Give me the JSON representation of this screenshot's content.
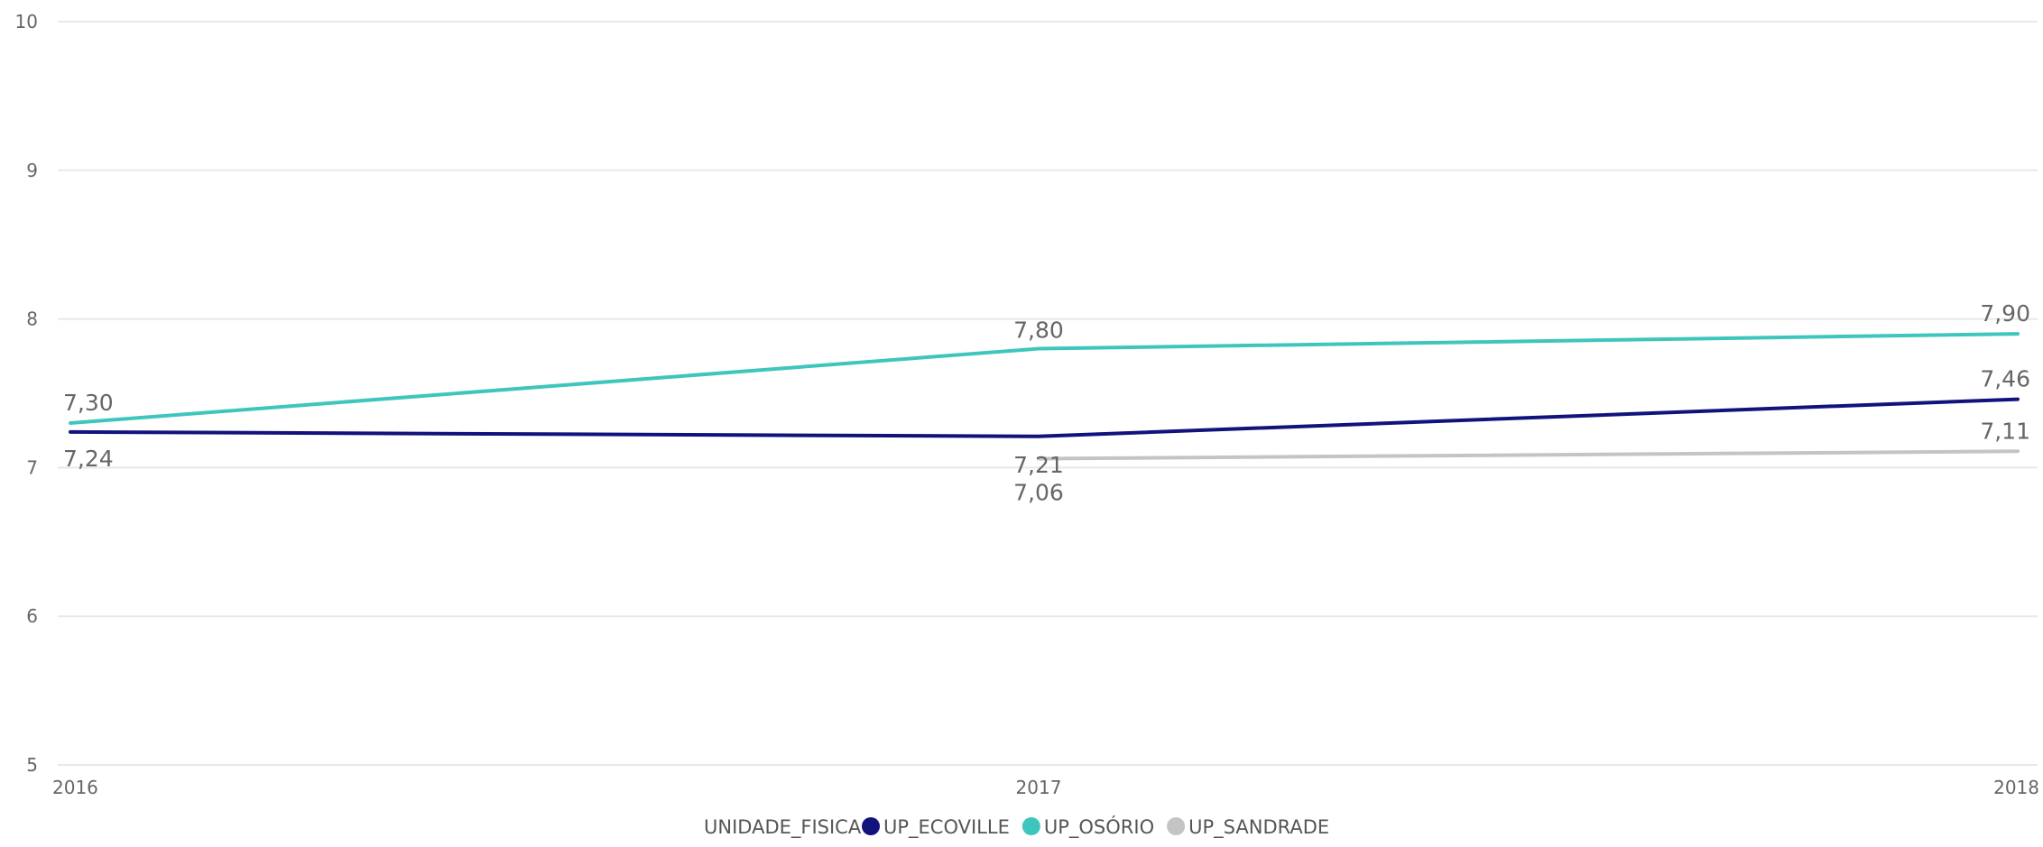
{
  "chart_data": {
    "type": "line",
    "title": "",
    "xlabel": "",
    "ylabel": "",
    "x": [
      "2016",
      "2017",
      "2018"
    ],
    "ylim": [
      5,
      10
    ],
    "yticks": [
      "5",
      "6",
      "7",
      "8",
      "9",
      "10"
    ],
    "grid": true,
    "legend": {
      "title": "UNIDADE_FISICA",
      "placement": "bottom-center"
    },
    "series": [
      {
        "name": "UP_ECOVILLE",
        "color": "#12127d",
        "values": [
          7.24,
          7.21,
          7.46
        ],
        "labels": [
          "7,24",
          "7,21",
          "7,46"
        ]
      },
      {
        "name": "UP_OSÓRIO",
        "color": "#3ec6bc",
        "values": [
          7.3,
          7.8,
          7.9
        ],
        "labels": [
          "7,30",
          "7,80",
          "7,90"
        ]
      },
      {
        "name": "UP_SANDRADE",
        "color": "#c4c4c4",
        "values": [
          null,
          7.06,
          7.11
        ],
        "labels": [
          null,
          "7,06",
          "7,11"
        ]
      }
    ]
  }
}
